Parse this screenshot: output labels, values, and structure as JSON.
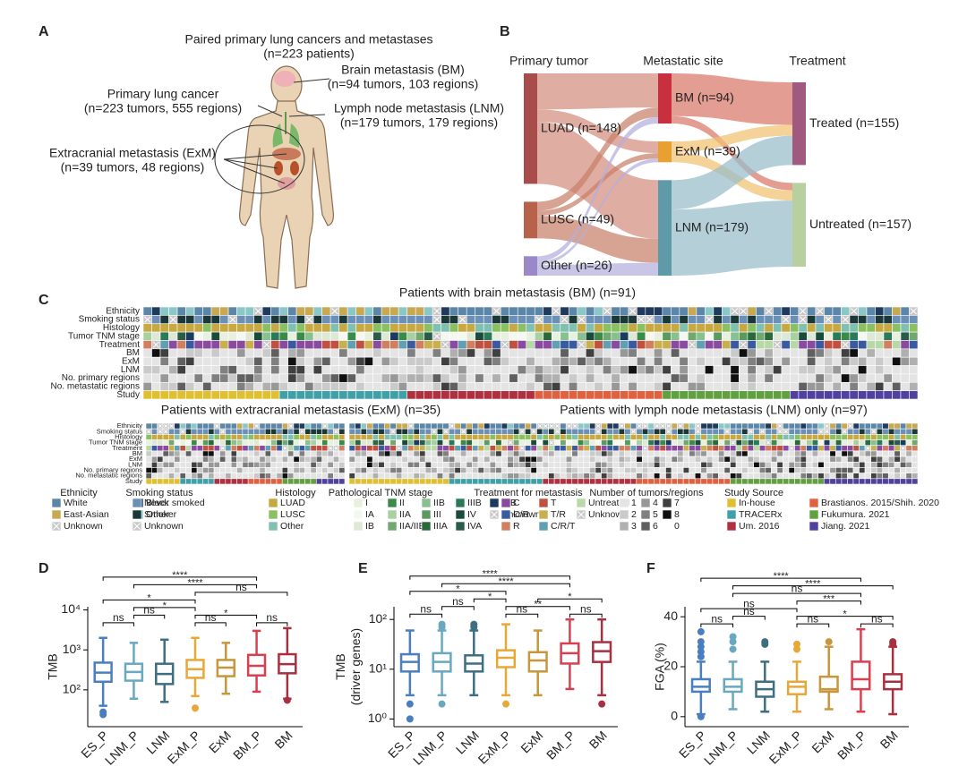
{
  "panel_labels": [
    "A",
    "B",
    "C",
    "D",
    "E",
    "F"
  ],
  "panel_a": {
    "title": "Paired primary lung cancers and metastases",
    "subtitle": "(n=223 patients)",
    "annotations": [
      {
        "label": "Brain metastasis (BM)",
        "detail": "(n=94 tumors, 103 regions)"
      },
      {
        "label": "Primary lung cancer",
        "detail": "(n=223 tumors, 555 regions)"
      },
      {
        "label": "Lymph node metastasis (LNM)",
        "detail": "(n=179 tumors, 179 regions)"
      },
      {
        "label": "Extracranial metastasis (ExM)",
        "detail": "(n=39 tumors, 48 regions)"
      }
    ]
  },
  "panel_c": {
    "bm_title": "Patients with brain metastasis (BM) (n=91)",
    "exm_title": "Patients with extracranial metastasis (ExM) (n=35)",
    "lnm_title": "Patients with lymph node metastasis (LNM) only (n=97)",
    "rows": [
      "Ethnicity",
      "Smoking status",
      "Histology",
      "Tumor TNM stage",
      "Treatment",
      "BM",
      "ExM",
      "LNM",
      "No. primary regions",
      "No. metastatic regions",
      "Study"
    ],
    "legend": [
      {
        "title": "Ethnicity",
        "items": [
          {
            "label": "White",
            "color": "#5b86a8"
          },
          {
            "label": "East-Asian",
            "color": "#c8a850"
          },
          {
            "label": "Unknown",
            "color": "#c8c8c8",
            "cross": true
          },
          {
            "label": "Black",
            "color": "#1f3a5a"
          },
          {
            "label": "Other",
            "color": "#8ac8c8"
          }
        ]
      },
      {
        "title": "Smoking status",
        "items": [
          {
            "label": "Never smoked",
            "color": "#6a90b8"
          },
          {
            "label": "Smoker",
            "color": "#1a3838"
          },
          {
            "label": "Unknown",
            "color": "#c8c8c8",
            "cross": true
          }
        ]
      },
      {
        "title": "Histology",
        "items": [
          {
            "label": "LUAD",
            "color": "#c8a840"
          },
          {
            "label": "LUSC",
            "color": "#8ac060"
          },
          {
            "label": "Other",
            "color": "#80c0b0"
          }
        ]
      },
      {
        "title": "Pathological TNM stage",
        "items": [
          {
            "label": "I",
            "color": "#e8f0e0"
          },
          {
            "label": "IA",
            "color": "#f4f8f0"
          },
          {
            "label": "IB",
            "color": "#dde8d6"
          },
          {
            "label": "II",
            "color": "#3a8a4a"
          },
          {
            "label": "IIA",
            "color": "#a8d0a0"
          },
          {
            "label": "IIA/IIB",
            "color": "#70a870"
          },
          {
            "label": "IIB",
            "color": "#88c090"
          },
          {
            "label": "III",
            "color": "#5a9a60"
          },
          {
            "label": "IIIA",
            "color": "#2a6a3a"
          },
          {
            "label": "IIIB",
            "color": "#2a7a5a"
          },
          {
            "label": "IV",
            "color": "#1a4a3a"
          },
          {
            "label": "IVA",
            "color": "#2a5a48"
          },
          {
            "label": "IVB",
            "color": "#1a3a60"
          },
          {
            "label": "Unknown",
            "color": "#c8c8c8",
            "cross": true
          }
        ]
      },
      {
        "title": "Treatment for metastasis",
        "items": [
          {
            "label": "C",
            "color": "#8a4aa0"
          },
          {
            "label": "C/R",
            "color": "#3a5aa0"
          },
          {
            "label": "R",
            "color": "#d08060"
          },
          {
            "label": "T",
            "color": "#c05040"
          },
          {
            "label": "T/R",
            "color": "#c8b050"
          },
          {
            "label": "C/R/T",
            "color": "#60a0b0"
          },
          {
            "label": "Untreated",
            "color": "#b8d8a8"
          },
          {
            "label": "Unknown",
            "color": "#c8c8c8",
            "cross": true
          }
        ]
      },
      {
        "title": "Number of tumors/regions",
        "items": [
          {
            "label": "1",
            "color": "#e4e4e4"
          },
          {
            "label": "2",
            "color": "#cacaca"
          },
          {
            "label": "3",
            "color": "#b0b0b0"
          },
          {
            "label": "4",
            "color": "#989898"
          },
          {
            "label": "5",
            "color": "#808080"
          },
          {
            "label": "6",
            "color": "#606060"
          },
          {
            "label": "7",
            "color": "#404040"
          },
          {
            "label": "8",
            "color": "#101010"
          },
          {
            "label": "0",
            "color": "#ffffff"
          }
        ]
      },
      {
        "title": "Study Source",
        "items": [
          {
            "label": "In-house",
            "color": "#e0c030"
          },
          {
            "label": "TRACERx",
            "color": "#40a0a8"
          },
          {
            "label": "Um. 2016",
            "color": "#b03040"
          },
          {
            "label": "Brastianos. 2015/Shih. 2020",
            "color": "#e06040"
          },
          {
            "label": "Fukumura. 2021",
            "color": "#60a040"
          },
          {
            "label": "Jiang. 2021",
            "color": "#5040a0"
          }
        ]
      }
    ]
  },
  "chart_data": [
    {
      "type": "sankey",
      "columns": [
        "Primary tumor",
        "Metastatic site",
        "Treatment"
      ],
      "nodes": [
        {
          "label": "LUAD (n=148)",
          "value": 148,
          "column": 0,
          "color": "#a84c4c"
        },
        {
          "label": "LUSC (n=49)",
          "value": 49,
          "column": 0,
          "color": "#b8624c"
        },
        {
          "label": "Other (n=26)",
          "value": 26,
          "column": 0,
          "color": "#9a88c8"
        },
        {
          "label": "BM (n=94)",
          "value": 94,
          "column": 1,
          "color": "#c83040"
        },
        {
          "label": "ExM (n=39)",
          "value": 39,
          "column": 1,
          "color": "#e8a030"
        },
        {
          "label": "LNM (n=179)",
          "value": 179,
          "column": 1,
          "color": "#5f9aa8"
        },
        {
          "label": "Treated (n=155)",
          "value": 155,
          "column": 2,
          "color": "#a05a80"
        },
        {
          "label": "Untreated (n=157)",
          "value": 157,
          "column": 2,
          "color": "#b8cfa0"
        }
      ],
      "links": [
        {
          "source": 0,
          "target": 3,
          "value": 64,
          "color": "#d48e80"
        },
        {
          "source": 0,
          "target": 4,
          "value": 22,
          "color": "#d48e80"
        },
        {
          "source": 0,
          "target": 5,
          "value": 110,
          "color": "#d48e80"
        },
        {
          "source": 1,
          "target": 3,
          "value": 18,
          "color": "#c8806a"
        },
        {
          "source": 1,
          "target": 4,
          "value": 10,
          "color": "#c8806a"
        },
        {
          "source": 1,
          "target": 5,
          "value": 45,
          "color": "#c8806a"
        },
        {
          "source": 2,
          "target": 3,
          "value": 12,
          "color": "#b4aedc"
        },
        {
          "source": 2,
          "target": 4,
          "value": 7,
          "color": "#b4aedc"
        },
        {
          "source": 2,
          "target": 5,
          "value": 24,
          "color": "#b4aedc"
        },
        {
          "source": 3,
          "target": 6,
          "value": 80,
          "color": "#d9776a"
        },
        {
          "source": 3,
          "target": 7,
          "value": 14,
          "color": "#d9776a"
        },
        {
          "source": 4,
          "target": 6,
          "value": 20,
          "color": "#f0c070"
        },
        {
          "source": 4,
          "target": 7,
          "value": 19,
          "color": "#f0c070"
        },
        {
          "source": 5,
          "target": 6,
          "value": 55,
          "color": "#98bccb"
        },
        {
          "source": 5,
          "target": 7,
          "value": 124,
          "color": "#98bccb"
        }
      ]
    },
    {
      "type": "box",
      "ylabel": [
        "TMB"
      ],
      "log_scale": true,
      "categories": [
        "ES_P",
        "LNM_P",
        "LNM",
        "ExM_P",
        "ExM",
        "BM_P",
        "BM"
      ],
      "colors": [
        "#4a7fbf",
        "#6aa8c0",
        "#3e6f80",
        "#e8a838",
        "#c8963c",
        "#d84050",
        "#a83040"
      ],
      "ylim": [
        12,
        12000
      ],
      "yticks": [
        {
          "value": 100,
          "label": "10²"
        },
        {
          "value": 1000,
          "label": "10³"
        },
        {
          "value": 10000,
          "label": "10⁴"
        }
      ],
      "boxes": [
        {
          "whislo": 40,
          "q1": 160,
          "med": 270,
          "q3": 480,
          "whishi": 2000,
          "fliers": [
            28,
            24
          ]
        },
        {
          "whislo": 60,
          "q1": 170,
          "med": 280,
          "q3": 450,
          "whishi": 1500,
          "fliers": []
        },
        {
          "whislo": 50,
          "q1": 140,
          "med": 250,
          "q3": 450,
          "whishi": 1800,
          "fliers": []
        },
        {
          "whislo": 70,
          "q1": 200,
          "med": 330,
          "q3": 560,
          "whishi": 2000,
          "fliers": [
            35
          ]
        },
        {
          "whislo": 80,
          "q1": 220,
          "med": 360,
          "q3": 560,
          "whishi": 1500,
          "fliers": []
        },
        {
          "whislo": 90,
          "q1": 230,
          "med": 400,
          "q3": 750,
          "whishi": 3000,
          "fliers": []
        },
        {
          "whislo": 60,
          "q1": 260,
          "med": 440,
          "q3": 780,
          "whishi": 3500,
          "fliers": [
            55
          ]
        }
      ],
      "comparisons": [
        {
          "from": 0,
          "to": 1,
          "label": "ns"
        },
        {
          "from": 3,
          "to": 4,
          "label": "ns"
        },
        {
          "from": 5,
          "to": 6,
          "label": "ns"
        },
        {
          "from": 1,
          "to": 2,
          "label": "ns"
        },
        {
          "from": 1,
          "to": 3,
          "label": "*"
        },
        {
          "from": 3,
          "to": 5,
          "label": "*"
        },
        {
          "from": 0,
          "to": 3,
          "label": "*"
        },
        {
          "from": 3,
          "to": 6,
          "label": "ns"
        },
        {
          "from": 1,
          "to": 5,
          "label": "****"
        },
        {
          "from": 0,
          "to": 5,
          "label": "****"
        }
      ]
    },
    {
      "type": "box",
      "ylabel": [
        "TMB",
        "(driver genes)"
      ],
      "log_scale": true,
      "categories": [
        "ES_P",
        "LNM_P",
        "LNM",
        "ExM_P",
        "ExM",
        "BM_P",
        "BM"
      ],
      "colors": [
        "#4a7fbf",
        "#6aa8c0",
        "#3e6f80",
        "#e8a838",
        "#c8963c",
        "#d84050",
        "#a83040"
      ],
      "ylim": [
        0.7,
        180
      ],
      "yticks": [
        {
          "value": 1,
          "label": "10⁰"
        },
        {
          "value": 10,
          "label": "10¹"
        },
        {
          "value": 100,
          "label": "10²"
        }
      ],
      "boxes": [
        {
          "whislo": 3,
          "q1": 9,
          "med": 14,
          "q3": 20,
          "whishi": 60,
          "fliers": [
            2,
            1
          ]
        },
        {
          "whislo": 3,
          "q1": 9,
          "med": 14,
          "q3": 21,
          "whishi": 60,
          "fliers": [
            70,
            80,
            2
          ]
        },
        {
          "whislo": 3,
          "q1": 9,
          "med": 13,
          "q3": 19,
          "whishi": 60,
          "fliers": [
            70,
            80
          ]
        },
        {
          "whislo": 3,
          "q1": 11,
          "med": 17,
          "q3": 24,
          "whishi": 80,
          "fliers": [
            2
          ]
        },
        {
          "whislo": 3,
          "q1": 9,
          "med": 15,
          "q3": 22,
          "whishi": 60,
          "fliers": []
        },
        {
          "whislo": 4,
          "q1": 13,
          "med": 21,
          "q3": 33,
          "whishi": 100,
          "fliers": []
        },
        {
          "whislo": 3,
          "q1": 14,
          "med": 23,
          "q3": 35,
          "whishi": 100,
          "fliers": [
            2
          ]
        }
      ],
      "comparisons": [
        {
          "from": 0,
          "to": 1,
          "label": "ns"
        },
        {
          "from": 3,
          "to": 4,
          "label": "ns"
        },
        {
          "from": 5,
          "to": 6,
          "label": "ns"
        },
        {
          "from": 1,
          "to": 2,
          "label": "ns"
        },
        {
          "from": 2,
          "to": 3,
          "label": "*"
        },
        {
          "from": 3,
          "to": 5,
          "label": "**"
        },
        {
          "from": 0,
          "to": 3,
          "label": "*"
        },
        {
          "from": 4,
          "to": 6,
          "label": "*"
        },
        {
          "from": 1,
          "to": 5,
          "label": "****"
        },
        {
          "from": 0,
          "to": 5,
          "label": "****"
        }
      ]
    },
    {
      "type": "box",
      "ylabel": [
        "FGA (%)"
      ],
      "log_scale": false,
      "categories": [
        "ES_P",
        "LNM_P",
        "LNM",
        "ExM_P",
        "ExM",
        "BM_P",
        "BM"
      ],
      "colors": [
        "#4a7fbf",
        "#6aa8c0",
        "#3e6f80",
        "#e8a838",
        "#c8963c",
        "#d84050",
        "#a83040"
      ],
      "ylim": [
        -4,
        44
      ],
      "yticks": [
        0,
        20,
        40
      ],
      "boxes": [
        {
          "whislo": 1,
          "q1": 10,
          "med": 12,
          "q3": 15,
          "whishi": 22,
          "fliers": [
            24,
            26,
            28,
            30,
            34,
            0
          ]
        },
        {
          "whislo": 3,
          "q1": 10,
          "med": 12,
          "q3": 15,
          "whishi": 22,
          "fliers": [
            27,
            30,
            32
          ]
        },
        {
          "whislo": 2,
          "q1": 8,
          "med": 11,
          "q3": 14,
          "whishi": 22,
          "fliers": [
            29,
            30
          ]
        },
        {
          "whislo": 2,
          "q1": 9,
          "med": 12,
          "q3": 14,
          "whishi": 22,
          "fliers": [
            27,
            29
          ]
        },
        {
          "whislo": 3,
          "q1": 10,
          "med": 11,
          "q3": 16,
          "whishi": 28,
          "fliers": [
            30
          ]
        },
        {
          "whislo": 2,
          "q1": 11,
          "med": 15,
          "q3": 22,
          "whishi": 35,
          "fliers": []
        },
        {
          "whislo": 1,
          "q1": 11,
          "med": 14,
          "q3": 17,
          "whishi": 28,
          "fliers": [
            29,
            30
          ]
        }
      ],
      "comparisons": [
        {
          "from": 0,
          "to": 1,
          "label": "ns"
        },
        {
          "from": 3,
          "to": 4,
          "label": "ns"
        },
        {
          "from": 5,
          "to": 6,
          "label": "ns"
        },
        {
          "from": 1,
          "to": 2,
          "label": "ns"
        },
        {
          "from": 3,
          "to": 6,
          "label": "*"
        },
        {
          "from": 0,
          "to": 3,
          "label": "ns"
        },
        {
          "from": 3,
          "to": 5,
          "label": "***"
        },
        {
          "from": 1,
          "to": 5,
          "label": "ns"
        },
        {
          "from": 1,
          "to": 6,
          "label": "****"
        },
        {
          "from": 0,
          "to": 5,
          "label": "****"
        }
      ]
    }
  ]
}
